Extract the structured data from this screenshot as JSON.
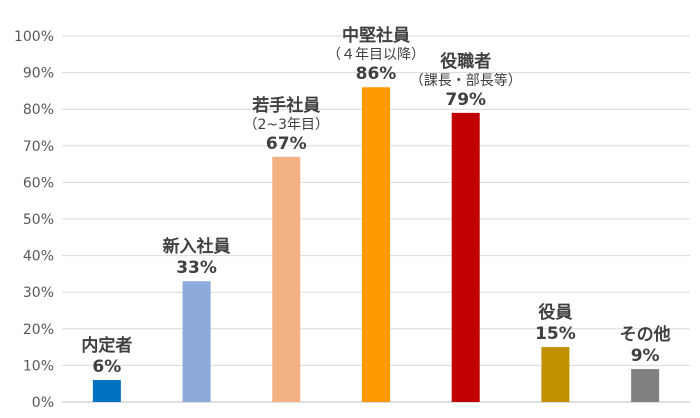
{
  "chart_data": {
    "type": "bar",
    "categories": [
      "内定者",
      "新入社員",
      "若手社員",
      "中堅社員",
      "役職者",
      "役員",
      "その他"
    ],
    "category_sublabels": [
      "",
      "",
      "（2~3年目）",
      "（４年目以降）",
      "（課長・部長等）",
      "",
      ""
    ],
    "values": [
      6,
      33,
      67,
      86,
      79,
      15,
      9
    ],
    "value_labels": [
      "6%",
      "33%",
      "67%",
      "86%",
      "79%",
      "15%",
      "9%"
    ],
    "bar_colors": [
      "#0070c0",
      "#8eaadb",
      "#f4b183",
      "#ff9900",
      "#c00000",
      "#bf9000",
      "#808080"
    ],
    "ylim": [
      0,
      100
    ],
    "y_ticks": [
      "0%",
      "10%",
      "20%",
      "30%",
      "40%",
      "50%",
      "60%",
      "70%",
      "80%",
      "90%",
      "100%"
    ],
    "grid": true,
    "legend": "none"
  }
}
